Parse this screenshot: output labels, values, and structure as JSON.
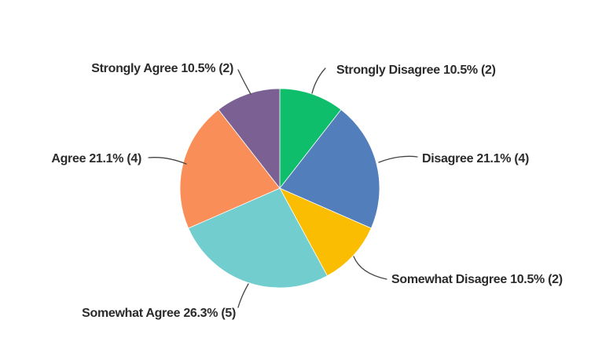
{
  "page": {
    "background_color": "#ffffff"
  },
  "chart_data": {
    "type": "pie",
    "title": "",
    "legend_position": "none",
    "label_style": "callout-labels-with-leader-lines",
    "direction": "clockwise",
    "start_angle_deg": 0,
    "total_responses": 19,
    "label_text_color": "#2b2b2b",
    "leader_line_color": "#444444",
    "slices": [
      {
        "label": "Strongly Disagree",
        "percent": 10.5,
        "count": 2,
        "color": "#0FBE6B",
        "display": "Strongly Disagree 10.5% (2)"
      },
      {
        "label": "Disagree",
        "percent": 21.1,
        "count": 4,
        "color": "#527FBB",
        "display": "Disagree 21.1% (4)"
      },
      {
        "label": "Somewhat Disagree",
        "percent": 10.5,
        "count": 2,
        "color": "#FBBD02",
        "display": "Somewhat Disagree 10.5% (2)"
      },
      {
        "label": "Somewhat Agree",
        "percent": 26.3,
        "count": 5,
        "color": "#72CDCE",
        "display": "Somewhat Agree 26.3% (5)"
      },
      {
        "label": "Agree",
        "percent": 21.1,
        "count": 4,
        "color": "#FA8E58",
        "display": "Agree 21.1% (4)"
      },
      {
        "label": "Strongly Agree",
        "percent": 10.5,
        "count": 2,
        "color": "#7A6093",
        "display": "Strongly Agree 10.5% (2)"
      }
    ]
  }
}
